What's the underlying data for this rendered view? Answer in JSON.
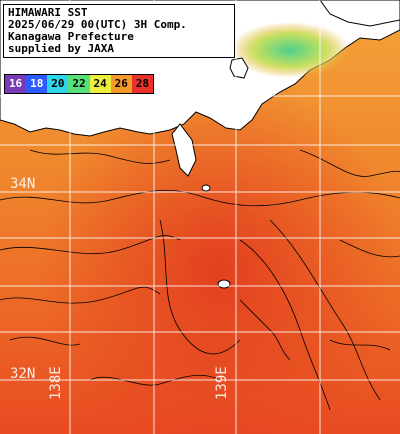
{
  "title": {
    "line1": "HIMAWARI SST",
    "line2": "2025/06/29 00(UTC) 3H Comp.",
    "line3": "Kanagawa Prefecture",
    "line4": "supplied by JAXA"
  },
  "legend": {
    "values": [
      "16",
      "18",
      "20",
      "22",
      "24",
      "26",
      "28"
    ],
    "colors": [
      "#7a3ab8",
      "#2b5cff",
      "#2ed6e8",
      "#57e07a",
      "#eded3c",
      "#f59b2a",
      "#e8322a"
    ],
    "text_colors": [
      "#ffffff",
      "#ffffff",
      "#000000",
      "#000000",
      "#000000",
      "#000000",
      "#000000"
    ]
  },
  "grid_labels": {
    "lat_34": "34N",
    "lat_32": "32N",
    "lon_138": "138E",
    "lon_139": "139E"
  },
  "colors": {
    "land": "#ffffff",
    "sea_warm": "#f07a2a",
    "sea_hot": "#e84a22",
    "sea_cool": "#f6b13c",
    "sea_coldest": "#5ccf6a",
    "coastline": "#000000",
    "grid": "#ffffff"
  }
}
